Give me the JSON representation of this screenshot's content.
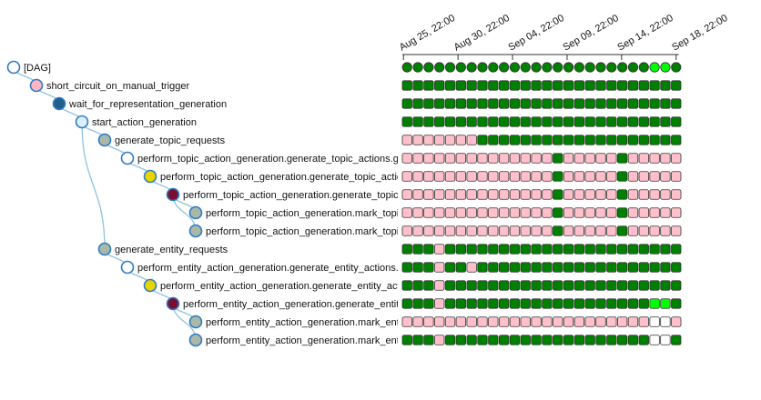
{
  "colors": {
    "success": "#008000",
    "running": "#00ff00",
    "upstream_failed": "#ffc0cb",
    "no_status": "#ffffff",
    "link": "#8ec3df",
    "node_border": "#2f7bc4"
  },
  "dates": [
    "Aug 25, 22:00",
    "Aug 30, 22:00",
    "Sep 04, 22:00",
    "Sep 09, 22:00",
    "Sep 14, 22:00",
    "Sep 18, 22:00"
  ],
  "dag_runs": [
    "success",
    "success",
    "success",
    "success",
    "success",
    "success",
    "success",
    "success",
    "success",
    "success",
    "success",
    "success",
    "success",
    "success",
    "success",
    "success",
    "success",
    "success",
    "success",
    "success",
    "success",
    "success",
    "success",
    "running",
    "running",
    "success"
  ],
  "tasks": [
    {
      "label": "[DAG]",
      "depth": 0,
      "node_color": "#ffffff",
      "pattern": "dag"
    },
    {
      "label": "short_circuit_on_manual_trigger",
      "depth": 1,
      "node_color": "#ffb6c1",
      "pattern": "all_success"
    },
    {
      "label": "wait_for_representation_generation",
      "depth": 2,
      "node_color": "#1f5f8b",
      "pattern": "all_success"
    },
    {
      "label": "start_action_generation",
      "depth": 3,
      "node_color": "#ddeeff",
      "pattern": "all_success"
    },
    {
      "label": "generate_topic_requests",
      "depth": 4,
      "node_color": "#aab8a8",
      "pattern": "topic_requests"
    },
    {
      "label": "perform_topic_action_generation.generate_topic_actions.generate_topic_actions",
      "depth": 5,
      "node_color": "#ffffff",
      "pattern": "topic_sub"
    },
    {
      "label": "perform_topic_action_generation.generate_topic_actions.generate_topic_actions_sensor",
      "depth": 6,
      "node_color": "#e8d400",
      "pattern": "topic_sub"
    },
    {
      "label": "perform_topic_action_generation.generate_topic_actions.generate_topic_actions_poke",
      "depth": 7,
      "node_color": "#7a1030",
      "pattern": "topic_sub"
    },
    {
      "label": "perform_topic_action_generation.mark_topic_actions_ready",
      "depth": 8,
      "node_color": "#aab8a8",
      "pattern": "topic_sub"
    },
    {
      "label": "perform_topic_action_generation.mark_topic_actions_done",
      "depth": 8,
      "node_color": "#aab8a8",
      "pattern": "topic_sub"
    },
    {
      "label": "generate_entity_requests",
      "depth": 4,
      "node_color": "#aab8a8",
      "pattern": "entity_requests"
    },
    {
      "label": "perform_entity_action_generation.generate_entity_actions.generate_entity_actions",
      "depth": 5,
      "node_color": "#ffffff",
      "pattern": "entity_gen"
    },
    {
      "label": "perform_entity_action_generation.generate_entity_actions.generate_entity_actions_sensor",
      "depth": 6,
      "node_color": "#e8d400",
      "pattern": "entity_sensor"
    },
    {
      "label": "perform_entity_action_generation.generate_entity_actions.generate_entity_actions_poke",
      "depth": 7,
      "node_color": "#7a1030",
      "pattern": "entity_poke"
    },
    {
      "label": "perform_entity_action_generation.mark_entity_actions_ready",
      "depth": 8,
      "node_color": "#aab8a8",
      "pattern": "entity_ready"
    },
    {
      "label": "perform_entity_action_generation.mark_entity_actions_done",
      "depth": 8,
      "node_color": "#aab8a8",
      "pattern": "entity_done"
    }
  ],
  "patterns": {
    "all_success": "SSSSSSSSSSSSSSSSSSSSSSSSSS",
    "topic_requests": "UUUUUUUSSSSSSSSSSSSSSSSSSS",
    "topic_sub": "UUUUUUUUUUUUUUSUUUUUSUUUUU",
    "entity_requests": "SSSUSSSSSSSSSSSSSSSSSSSSSS",
    "entity_gen": "SSSUSSUSSSSSSSSSSSSSSSSSSS",
    "entity_sensor": "SSSUSSSSSSSSSSSSSSSSSSSSSS",
    "entity_poke": "SSSUSSSSSSSSSSSSSSSSSSSRRS",
    "entity_ready": "UUUUUUUUUUUUUUUUUUUUUUUNNU",
    "entity_done": "SSSUSSSSSSSSSSSSSSSSSSSNNS"
  }
}
